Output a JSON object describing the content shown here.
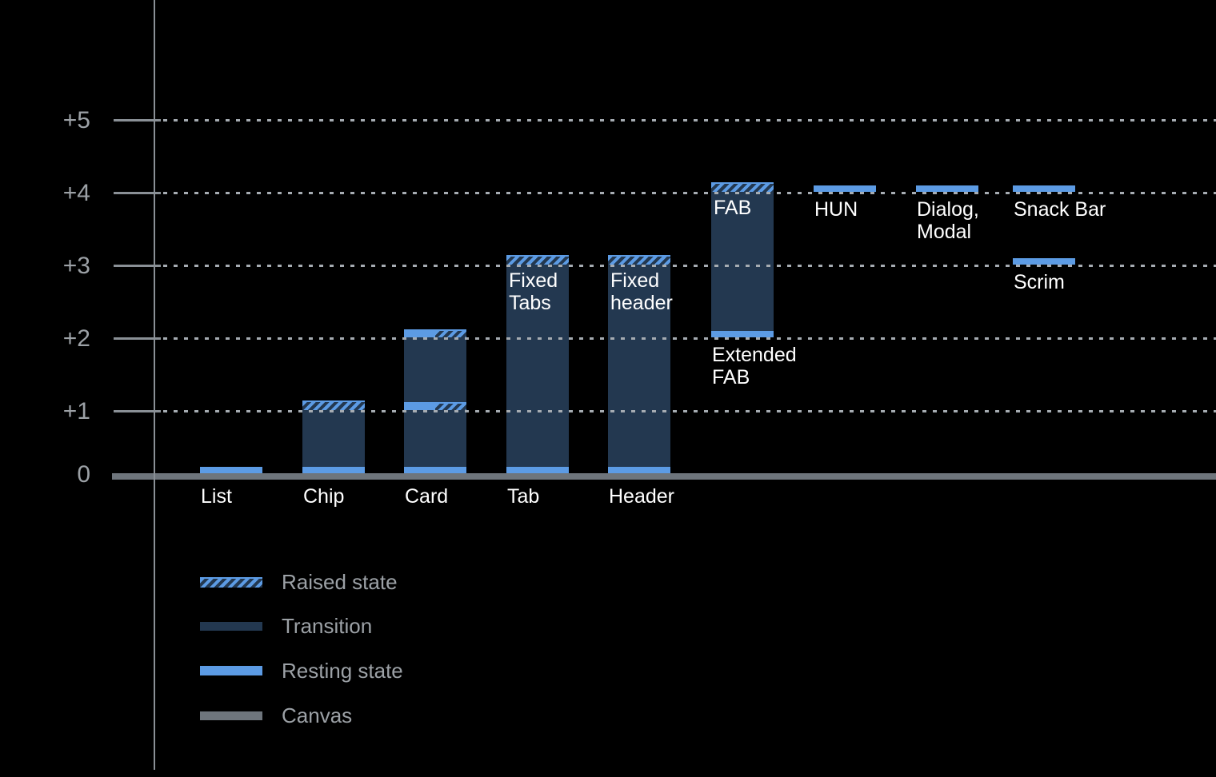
{
  "chart_data": {
    "type": "bar",
    "description": "Elevation diagram of UI components on a dark canvas, showing resting state, transition range and raised state for each component across elevation levels 0 to +5",
    "y_tick_labels": [
      "+5",
      "+4",
      "+3",
      "+2",
      "+1",
      "0"
    ],
    "y_levels": [
      5,
      4,
      3,
      2,
      1,
      0
    ],
    "ylim": [
      0,
      5
    ],
    "grid": "dotted horizontal gridlines at +1 through +5",
    "legend_position": "bottom-left",
    "legend": [
      {
        "label": "Raised state",
        "swatch": "raised"
      },
      {
        "label": "Transition",
        "swatch": "transition"
      },
      {
        "label": "Resting state",
        "swatch": "resting"
      },
      {
        "label": "Canvas",
        "swatch": "canvas"
      }
    ],
    "bars": [
      {
        "category": "List",
        "base": 0,
        "segments": [
          {
            "kind": "resting",
            "level": 0
          }
        ]
      },
      {
        "category": "Chip",
        "base": 0,
        "segments": [
          {
            "kind": "resting",
            "level": 0
          },
          {
            "kind": "transition",
            "to": 1
          },
          {
            "kind": "raised",
            "level": 1
          }
        ]
      },
      {
        "category": "Card",
        "base": 0,
        "segments": [
          {
            "kind": "resting",
            "level": 0
          },
          {
            "kind": "transition",
            "to": 1
          },
          {
            "kind": "split",
            "level": 1
          },
          {
            "kind": "transition",
            "to": 2
          },
          {
            "kind": "split",
            "level": 2
          }
        ]
      },
      {
        "category": "Tab",
        "base": 0,
        "in_bar_label": "Fixed\nTabs",
        "segments": [
          {
            "kind": "resting",
            "level": 0
          },
          {
            "kind": "transition",
            "to": 3
          },
          {
            "kind": "raised",
            "level": 3
          }
        ]
      },
      {
        "category": "Header",
        "base": 0,
        "in_bar_label": "Fixed\nheader",
        "segments": [
          {
            "kind": "resting",
            "level": 0
          },
          {
            "kind": "transition",
            "to": 3
          },
          {
            "kind": "raised",
            "level": 3
          }
        ]
      },
      {
        "category": "Extended\nFAB",
        "base": 2,
        "label_position": "below-bar",
        "in_bar_label": "FAB",
        "segments": [
          {
            "kind": "resting",
            "level": 2
          },
          {
            "kind": "transition",
            "to": 4
          },
          {
            "kind": "raised",
            "level": 4
          }
        ]
      },
      {
        "category": "HUN",
        "base": 4,
        "label_position": "below-bar",
        "segments": [
          {
            "kind": "resting",
            "level": 4
          }
        ]
      },
      {
        "category": "Dialog,\nModal",
        "base": 4,
        "label_position": "below-bar",
        "segments": [
          {
            "kind": "resting",
            "level": 4
          }
        ]
      },
      {
        "category": "Snack Bar",
        "base": 4,
        "label_position": "below-bar",
        "segments": [
          {
            "kind": "resting",
            "level": 4
          }
        ]
      },
      {
        "category": "Scrim",
        "base": 3,
        "label_position": "below-bar",
        "segments": [
          {
            "kind": "resting",
            "level": 3
          }
        ]
      }
    ],
    "colors": {
      "background": "#000000",
      "resting": "#5C9BE4",
      "transition": "#233850",
      "raised_stripe": "#5C9BE4",
      "canvas": "#6E757C",
      "axis": "#8A9096",
      "text_muted": "#9CA1A6",
      "text": "#FFFFFF"
    }
  }
}
